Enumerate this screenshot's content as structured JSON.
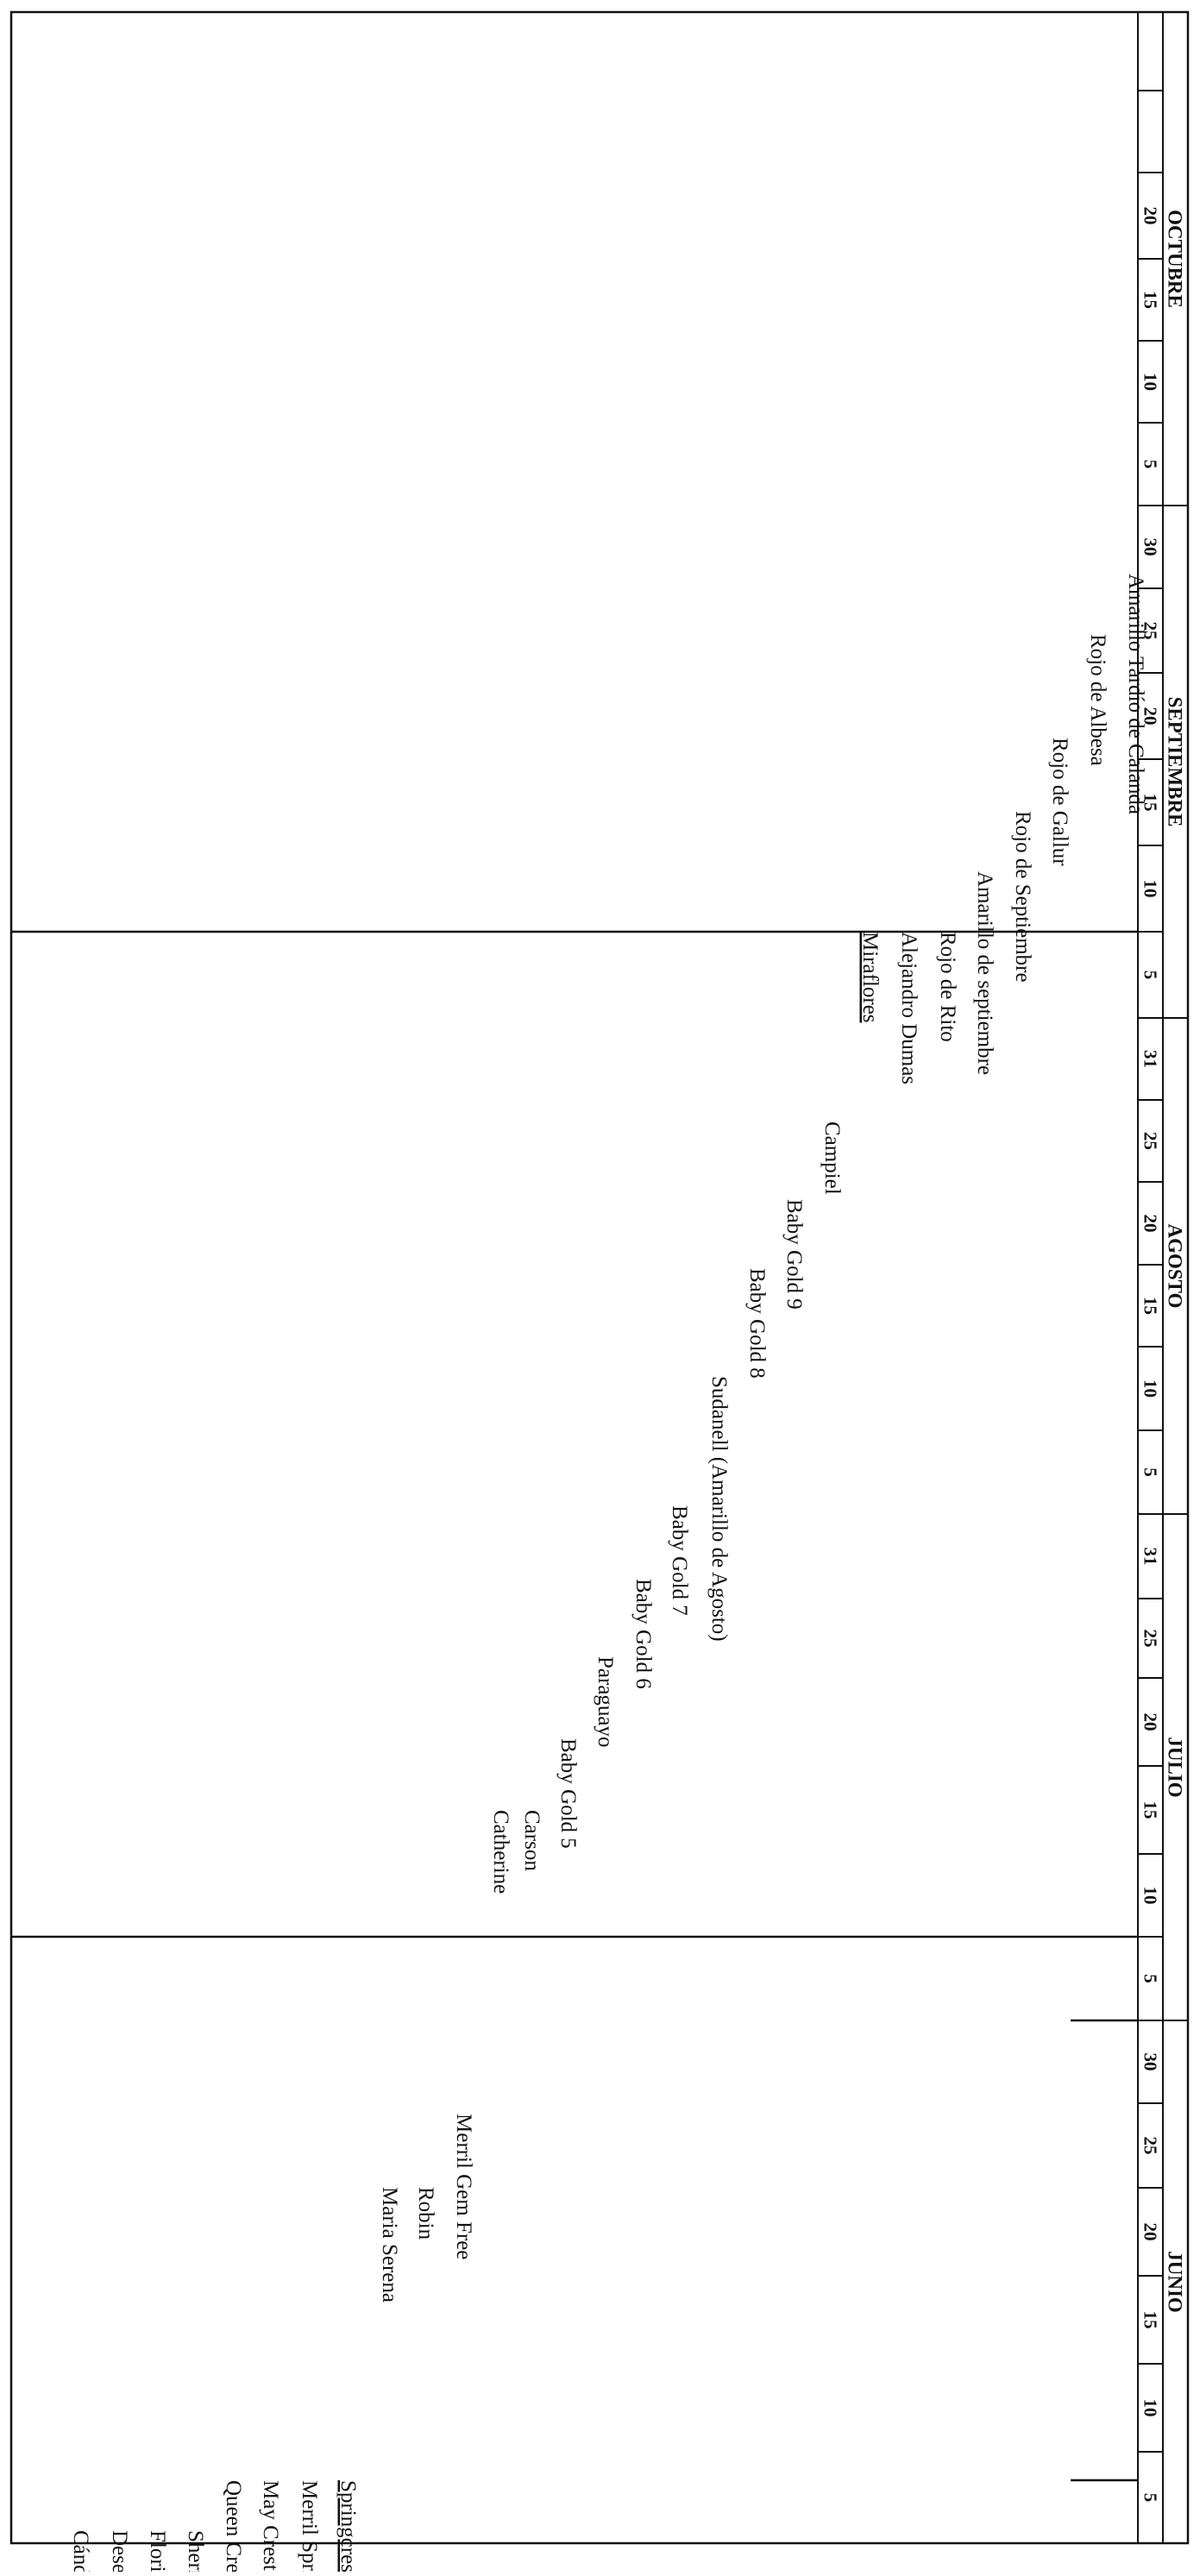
{
  "months": [
    {
      "name": "JUNIO",
      "days": [
        "5",
        "10",
        "15",
        "20",
        "25",
        "30"
      ]
    },
    {
      "name": "JULIO",
      "days": [
        "5",
        "10",
        "15",
        "20",
        "25",
        "31"
      ]
    },
    {
      "name": "AGOSTO",
      "days": [
        "5",
        "10",
        "15",
        "20",
        "25",
        "31"
      ]
    },
    {
      "name": "SEPTIEMBRE",
      "days": [
        "5",
        "10",
        "15",
        "20",
        "25",
        "30"
      ]
    },
    {
      "name": "OCTUBRE",
      "days": [
        "5",
        "10",
        "15",
        "20"
      ]
    }
  ],
  "varieties": [
    {
      "name": "Cándor"
    },
    {
      "name": "Desert Gold"
    },
    {
      "name": "Florida"
    },
    {
      "name": "Sherman"
    },
    {
      "name": "Queen Crest"
    },
    {
      "name": "May Crest"
    },
    {
      "name": "Merril Spring Lady"
    },
    {
      "name": "Springcrest",
      "underline": true
    },
    {
      "name": "Maria Serena"
    },
    {
      "name": "Robin"
    },
    {
      "name": "Merril Gem Free"
    },
    {
      "name": "Catherine"
    },
    {
      "name": "Carson"
    },
    {
      "name": "Baby Gold 5"
    },
    {
      "name": "Paraguayo"
    },
    {
      "name": "Baby Gold 6"
    },
    {
      "name": "Baby Gold 7"
    },
    {
      "name": "Sudanell (Amarillo de Agosto)"
    },
    {
      "name": "Baby Gold 8"
    },
    {
      "name": "Baby Gold 9"
    },
    {
      "name": "Campiel"
    },
    {
      "name": "Miraflores",
      "underline": true
    },
    {
      "name": "Alejandro Dumas"
    },
    {
      "name": "Rojo de Rito"
    },
    {
      "name": "Amarillo de septiembre"
    },
    {
      "name": "Rojo de Septiembre"
    },
    {
      "name": "Rojo de Gallur"
    },
    {
      "name": "Rojo de Albesa"
    },
    {
      "name": "Amarillo Tardío de Calanda"
    }
  ]
}
